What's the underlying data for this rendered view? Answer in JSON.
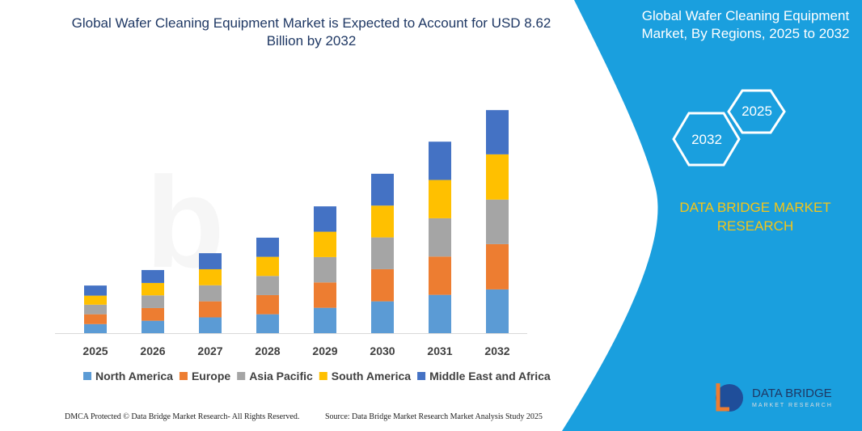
{
  "chart_data": {
    "type": "bar",
    "stacked": true,
    "title": "Global Wafer Cleaning Equipment Market is Expected to Account for USD 8.62 Billion by 2032",
    "categories": [
      "2025",
      "2026",
      "2027",
      "2028",
      "2029",
      "2030",
      "2031",
      "2032"
    ],
    "series": [
      {
        "name": "North America",
        "color": "#5b9bd5",
        "values": [
          0.35,
          0.48,
          0.61,
          0.73,
          0.98,
          1.23,
          1.48,
          1.69
        ]
      },
      {
        "name": "Europe",
        "color": "#ed7d31",
        "values": [
          0.38,
          0.49,
          0.62,
          0.74,
          0.98,
          1.24,
          1.48,
          1.75
        ]
      },
      {
        "name": "Asia Pacific",
        "color": "#a5a5a5",
        "values": [
          0.37,
          0.49,
          0.62,
          0.74,
          0.98,
          1.23,
          1.48,
          1.72
        ]
      },
      {
        "name": "South America",
        "color": "#ffc000",
        "values": [
          0.35,
          0.48,
          0.62,
          0.74,
          0.98,
          1.23,
          1.48,
          1.75
        ]
      },
      {
        "name": "Middle East and Africa",
        "color": "#4472c4",
        "values": [
          0.39,
          0.5,
          0.62,
          0.74,
          0.98,
          1.23,
          1.48,
          1.71
        ]
      }
    ]
  },
  "side_panel": {
    "title": "Global Wafer Cleaning Equipment Market, By Regions, 2025 to 2032",
    "hexagons": [
      "2032",
      "2025"
    ],
    "brand": "DATA BRIDGE MARKET RESEARCH"
  },
  "logo": {
    "name": "DATA BRIDGE",
    "tagline": "MARKET RESEARCH"
  },
  "footer": {
    "copyright": "DMCA Protected © Data Bridge Market Research- All Rights Reserved.",
    "source": "Source: Data Bridge Market Research Market Analysis Study 2025"
  }
}
